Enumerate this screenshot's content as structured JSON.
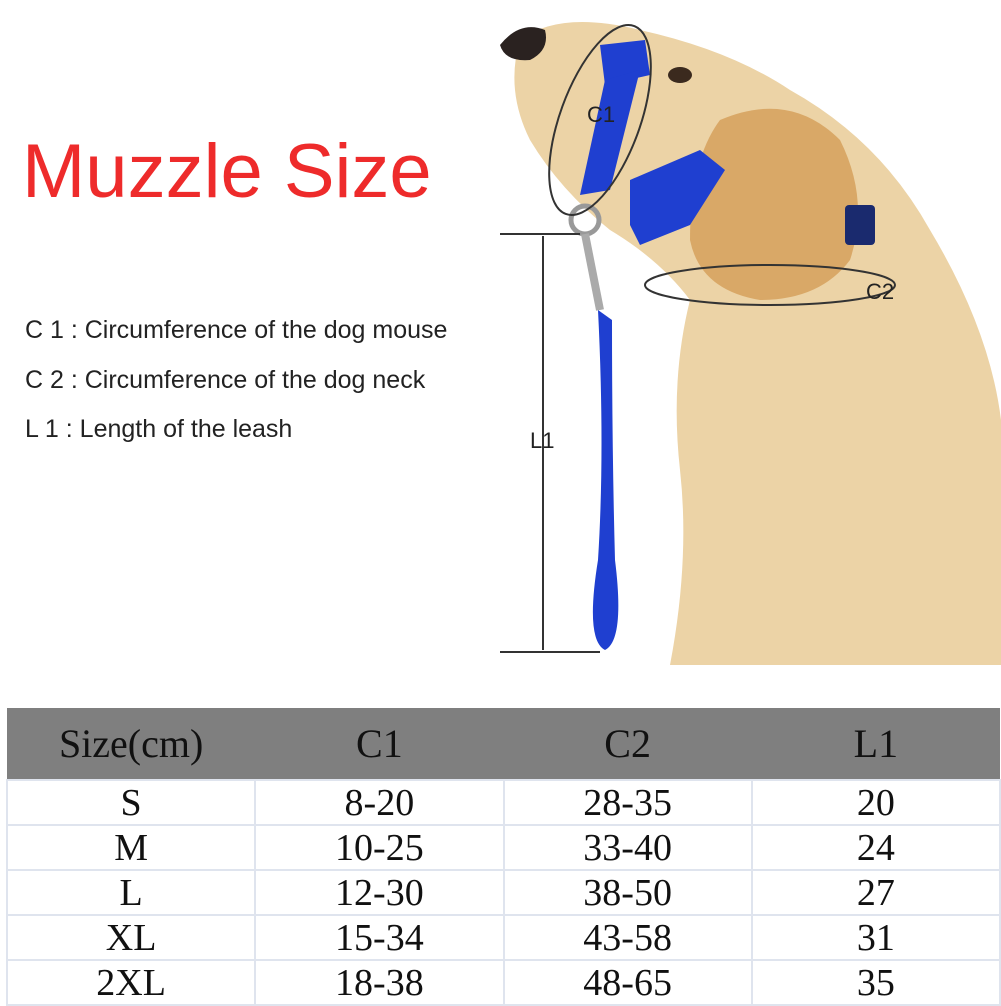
{
  "title": "Muzzle Size",
  "title_color": "#ee2b2b",
  "legend": [
    "C 1 : Circumference of the dog mouse",
    "C 2 : Circumference of the dog neck",
    "L 1 : Length of the leash"
  ],
  "diagram_labels": {
    "c1": "C1",
    "c2": "C2",
    "l1": "L1"
  },
  "table": {
    "headers": [
      "Size(cm)",
      "C1",
      "C2",
      "L1"
    ],
    "rows": [
      [
        "S",
        "8-20",
        "28-35",
        "20"
      ],
      [
        "M",
        "10-25",
        "33-40",
        "24"
      ],
      [
        "L",
        "12-30",
        "38-50",
        "27"
      ],
      [
        "XL",
        "15-34",
        "43-58",
        "31"
      ],
      [
        "2XL",
        "18-38",
        "48-65",
        "35"
      ]
    ],
    "header_color": "#7f7f7f"
  },
  "muzzle_color": "#1f3fd0"
}
